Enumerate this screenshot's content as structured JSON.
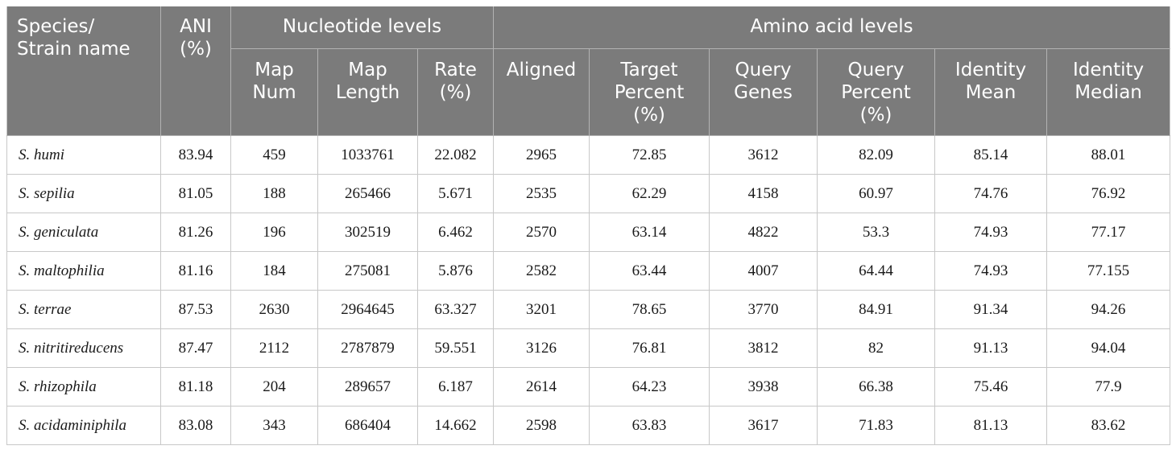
{
  "table": {
    "headers": {
      "species": [
        "Species/",
        "Strain name"
      ],
      "ani": [
        "ANI",
        "(%)"
      ],
      "nucleotide_group": "Nucleotide levels",
      "amino_group": "Amino acid levels",
      "map_num": [
        "Map",
        "Num"
      ],
      "map_length": [
        "Map",
        "Length"
      ],
      "rate": [
        "Rate",
        "(%)"
      ],
      "aligned": [
        "Aligned"
      ],
      "target_percent": [
        "Target",
        "Percent",
        "(%)"
      ],
      "query_genes": [
        "Query",
        "Genes"
      ],
      "query_percent": [
        "Query",
        "Percent",
        "(%)"
      ],
      "identity_mean": [
        "Identity",
        "Mean"
      ],
      "identity_median": [
        "Identity",
        "Median"
      ]
    },
    "rows": [
      {
        "species": "S. humi",
        "ani": "83.94",
        "map_num": "459",
        "map_length": "1033761",
        "rate": "22.082",
        "aligned": "2965",
        "target_percent": "72.85",
        "query_genes": "3612",
        "query_percent": "82.09",
        "identity_mean": "85.14",
        "identity_median": "88.01"
      },
      {
        "species": "S. sepilia",
        "ani": "81.05",
        "map_num": "188",
        "map_length": "265466",
        "rate": "5.671",
        "aligned": "2535",
        "target_percent": "62.29",
        "query_genes": "4158",
        "query_percent": "60.97",
        "identity_mean": "74.76",
        "identity_median": "76.92"
      },
      {
        "species": "S. geniculata",
        "ani": "81.26",
        "map_num": "196",
        "map_length": "302519",
        "rate": "6.462",
        "aligned": "2570",
        "target_percent": "63.14",
        "query_genes": "4822",
        "query_percent": "53.3",
        "identity_mean": "74.93",
        "identity_median": "77.17"
      },
      {
        "species": "S. maltophilia",
        "ani": "81.16",
        "map_num": "184",
        "map_length": "275081",
        "rate": "5.876",
        "aligned": "2582",
        "target_percent": "63.44",
        "query_genes": "4007",
        "query_percent": "64.44",
        "identity_mean": "74.93",
        "identity_median": "77.155"
      },
      {
        "species": "S. terrae",
        "ani": "87.53",
        "map_num": "2630",
        "map_length": "2964645",
        "rate": "63.327",
        "aligned": "3201",
        "target_percent": "78.65",
        "query_genes": "3770",
        "query_percent": "84.91",
        "identity_mean": "91.34",
        "identity_median": "94.26"
      },
      {
        "species": "S. nitritireducens",
        "ani": "87.47",
        "map_num": "2112",
        "map_length": "2787879",
        "rate": "59.551",
        "aligned": "3126",
        "target_percent": "76.81",
        "query_genes": "3812",
        "query_percent": "82",
        "identity_mean": "91.13",
        "identity_median": "94.04"
      },
      {
        "species": "S. rhizophila",
        "ani": "81.18",
        "map_num": "204",
        "map_length": "289657",
        "rate": "6.187",
        "aligned": "2614",
        "target_percent": "64.23",
        "query_genes": "3938",
        "query_percent": "66.38",
        "identity_mean": "75.46",
        "identity_median": "77.9"
      },
      {
        "species": "S. acidaminiphila",
        "ani": "83.08",
        "map_num": "343",
        "map_length": "686404",
        "rate": "14.662",
        "aligned": "2598",
        "target_percent": "63.83",
        "query_genes": "3617",
        "query_percent": "71.83",
        "identity_mean": "81.13",
        "identity_median": "83.62"
      }
    ]
  }
}
